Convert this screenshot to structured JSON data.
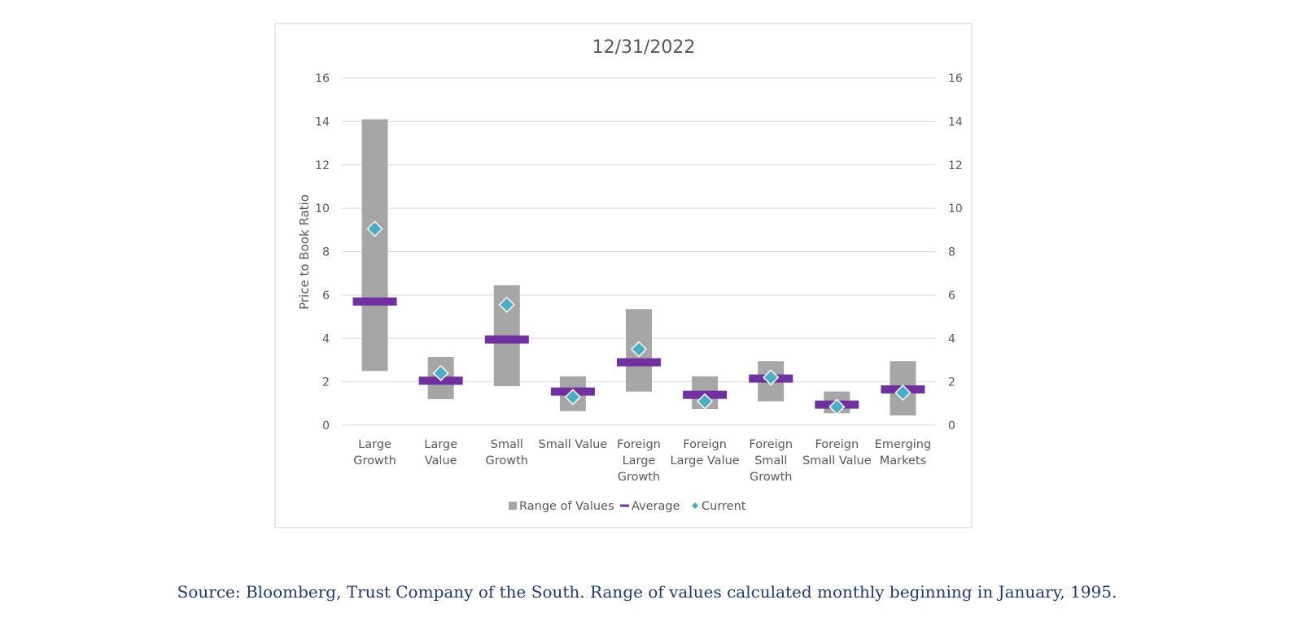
{
  "colors": {
    "range": "#a6a6a6",
    "average": "#7030a0",
    "current": "#4bacc6",
    "grid": "#d9d9d9",
    "text": "#595959",
    "frame": "#d9d9d9",
    "source": "#1f3a6e"
  },
  "chart_data": {
    "type": "bar",
    "title": "12/31/2022",
    "ylabel": "Price to Book Ratio",
    "ylim": [
      0,
      16
    ],
    "yticks": [
      0,
      2,
      4,
      6,
      8,
      10,
      12,
      14,
      16
    ],
    "secondary_y_axis": true,
    "grid": true,
    "legend_position": "bottom",
    "categories": [
      [
        "Large",
        "Growth"
      ],
      [
        "Large",
        "Value"
      ],
      [
        "Small",
        "Growth"
      ],
      [
        "Small Value"
      ],
      [
        "Foreign",
        "Large",
        "Growth"
      ],
      [
        "Foreign",
        "Large Value"
      ],
      [
        "Foreign",
        "Small",
        "Growth"
      ],
      [
        "Foreign",
        "Small Value"
      ],
      [
        "Emerging",
        "Markets"
      ]
    ],
    "series": [
      {
        "name": "Range of Values",
        "mark": "floating-bar",
        "low": [
          2.5,
          1.2,
          1.8,
          0.65,
          1.55,
          0.75,
          1.1,
          0.55,
          0.45
        ],
        "high": [
          14.1,
          3.15,
          6.45,
          2.25,
          5.35,
          2.25,
          2.95,
          1.55,
          2.95
        ]
      },
      {
        "name": "Average",
        "mark": "dash",
        "values": [
          5.7,
          2.05,
          3.95,
          1.55,
          2.9,
          1.4,
          2.15,
          0.95,
          1.65
        ]
      },
      {
        "name": "Current",
        "mark": "diamond",
        "values": [
          9.05,
          2.4,
          5.55,
          1.3,
          3.5,
          1.1,
          2.2,
          0.85,
          1.5
        ]
      }
    ]
  },
  "source_note": "Source: Bloomberg, Trust Company of the South. Range of values calculated monthly beginning in January, 1995."
}
